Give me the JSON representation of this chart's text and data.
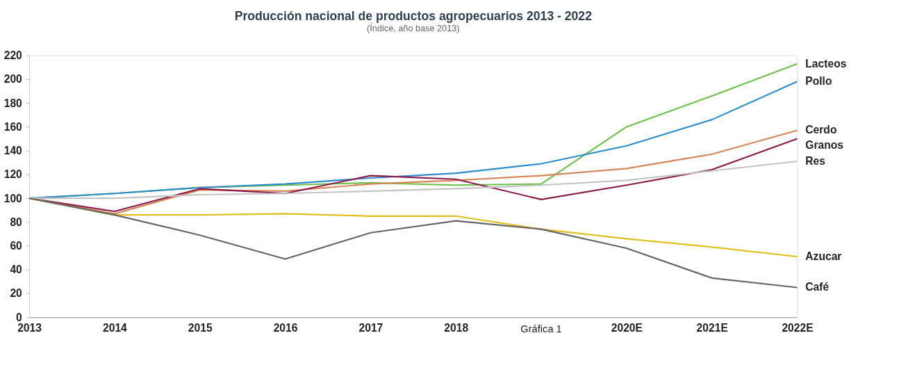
{
  "chart_data": {
    "type": "line",
    "title": "Producción nacional de productos agropecuarios 2013 - 2022",
    "subtitle": "(Índice, año base 2013)",
    "categories": [
      "2013",
      "2014",
      "2015",
      "2016",
      "2017",
      "2018",
      null,
      "2020E",
      "2021E",
      "2022E"
    ],
    "series": [
      {
        "name": "Lacteos",
        "color": "#6cc04a",
        "values": [
          100,
          104,
          109,
          111,
          113,
          111,
          112,
          160,
          186,
          213
        ]
      },
      {
        "name": "Pollo",
        "color": "#2e8bc9",
        "values": [
          100,
          104,
          109,
          112,
          117,
          121,
          129,
          144,
          166,
          198
        ]
      },
      {
        "name": "Cerdo",
        "color": "#d4875a",
        "values": [
          100,
          87,
          107,
          106,
          112,
          115,
          119,
          125,
          137,
          157
        ]
      },
      {
        "name": "Granos",
        "color": "#8b1a4a",
        "values": [
          100,
          89,
          108,
          104,
          119,
          116,
          99,
          111,
          124,
          150
        ]
      },
      {
        "name": "Res",
        "color": "#c4c4c4",
        "values": [
          100,
          100,
          103,
          104,
          106,
          108,
          111,
          115,
          123,
          131
        ]
      },
      {
        "name": "Azucar",
        "color": "#e0c020",
        "values": [
          100,
          86,
          86,
          87,
          85,
          85,
          74,
          66,
          59,
          51
        ]
      },
      {
        "name": "Café",
        "color": "#666666",
        "values": [
          100,
          86,
          69,
          49,
          71,
          81,
          74,
          58,
          33,
          25
        ]
      }
    ],
    "ylim": [
      0,
      220
    ],
    "yticks": [
      0,
      20,
      40,
      60,
      80,
      100,
      120,
      140,
      160,
      180,
      200,
      220
    ],
    "grid": false,
    "legend": false,
    "marker": "none",
    "line_style": "solid",
    "annotations": [
      "Gráfica 1"
    ]
  }
}
